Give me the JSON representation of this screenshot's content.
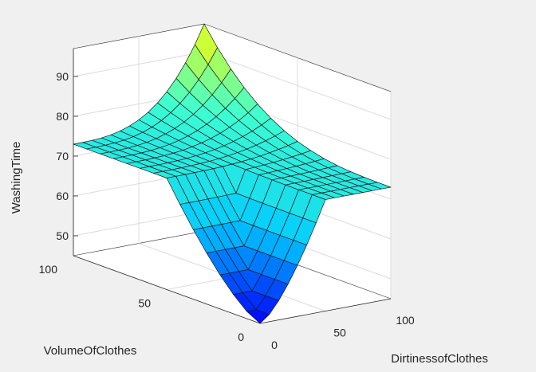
{
  "chart_data": {
    "type": "surface",
    "xlabel": "DirtinessofClothes",
    "ylabel": "VolumeOfClothes",
    "zlabel": "WashingTime",
    "xlim": [
      0,
      100
    ],
    "ylim": [
      0,
      100
    ],
    "zlim": [
      45,
      97
    ],
    "x_ticks": [
      "0",
      "50",
      "100"
    ],
    "y_ticks": [
      "0",
      "50",
      "100"
    ],
    "z_ticks": [
      "50",
      "60",
      "70",
      "80",
      "90"
    ],
    "grid": true,
    "colormap": [
      "#0000ff",
      "#00c8ff",
      "#40ffd0",
      "#ffff00"
    ],
    "x": [
      0,
      7.1,
      14.3,
      21.4,
      28.6,
      35.7,
      42.9,
      50,
      57.1,
      64.3,
      71.4,
      78.6,
      85.7,
      92.9,
      100
    ],
    "y": [
      0,
      7.1,
      14.3,
      21.4,
      28.6,
      35.7,
      42.9,
      50,
      57.1,
      64.3,
      71.4,
      78.6,
      85.7,
      92.9,
      100
    ],
    "z_description": "WashingTime is about 45 when both inputs are low and about 73 along the high edges; peak about 97 at (100,100)"
  }
}
